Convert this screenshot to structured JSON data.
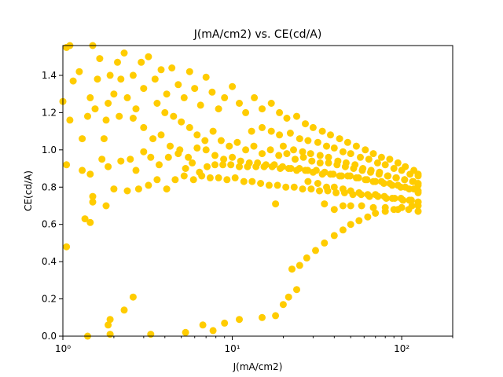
{
  "chart_data": {
    "type": "scatter",
    "title": "J(mA/cm2) vs. CE(cd/A)",
    "xlabel": "J(mA/cm2)",
    "ylabel": "CE(cd/A)",
    "xscale": "log",
    "xlim": [
      1,
      200
    ],
    "ylim": [
      0,
      1.56
    ],
    "grid": false,
    "marker_color": "#ffcc00",
    "x_ticks": [
      {
        "value": 1,
        "label": "10⁰"
      },
      {
        "value": 10,
        "label": "10¹"
      },
      {
        "value": 100,
        "label": "10²"
      }
    ],
    "y_ticks": [
      {
        "value": 0.0,
        "label": "0.0"
      },
      {
        "value": 0.2,
        "label": "0.2"
      },
      {
        "value": 0.4,
        "label": "0.4"
      },
      {
        "value": 0.6,
        "label": "0.6"
      },
      {
        "value": 0.8,
        "label": "0.8"
      },
      {
        "value": 1.0,
        "label": "1.0"
      },
      {
        "value": 1.2,
        "label": "1.2"
      },
      {
        "value": 1.4,
        "label": "1.4"
      }
    ],
    "series": [
      {
        "points": [
          [
            1.0,
            1.26
          ],
          [
            1.05,
            1.55
          ],
          [
            1.1,
            1.56
          ],
          [
            1.15,
            1.37
          ],
          [
            1.1,
            1.16
          ],
          [
            1.25,
            1.42
          ],
          [
            1.3,
            1.06
          ],
          [
            1.45,
            1.28
          ],
          [
            1.4,
            1.18
          ],
          [
            1.55,
            1.22
          ],
          [
            1.6,
            1.38
          ],
          [
            1.5,
            1.56
          ],
          [
            1.65,
            1.49
          ],
          [
            1.75,
            1.06
          ],
          [
            1.8,
            1.16
          ],
          [
            1.85,
            1.25
          ],
          [
            1.9,
            1.4
          ],
          [
            2.0,
            1.3
          ],
          [
            2.1,
            1.47
          ],
          [
            2.2,
            1.38
          ],
          [
            2.3,
            1.52
          ],
          [
            2.15,
            1.18
          ],
          [
            2.4,
            1.28
          ],
          [
            2.6,
            1.4
          ],
          [
            2.7,
            1.22
          ],
          [
            2.9,
            1.47
          ],
          [
            3.0,
            1.33
          ],
          [
            3.2,
            1.5
          ],
          [
            3.5,
            1.38
          ],
          [
            3.8,
            1.43
          ],
          [
            4.1,
            1.3
          ],
          [
            4.4,
            1.44
          ],
          [
            4.8,
            1.35
          ],
          [
            5.2,
            1.28
          ],
          [
            5.6,
            1.42
          ],
          [
            6.0,
            1.33
          ],
          [
            6.5,
            1.24
          ],
          [
            7.0,
            1.39
          ],
          [
            7.6,
            1.31
          ],
          [
            8.3,
            1.22
          ],
          [
            9.0,
            1.28
          ],
          [
            10.0,
            1.34
          ],
          [
            11.0,
            1.25
          ],
          [
            12.0,
            1.2
          ],
          [
            13.5,
            1.28
          ],
          [
            15.0,
            1.22
          ],
          [
            17.0,
            1.25
          ],
          [
            19.0,
            1.2
          ],
          [
            21.0,
            1.17
          ],
          [
            24.0,
            1.18
          ],
          [
            27.0,
            1.14
          ],
          [
            30.0,
            1.12
          ],
          [
            34.0,
            1.1
          ],
          [
            38.0,
            1.08
          ],
          [
            43.0,
            1.06
          ],
          [
            48.0,
            1.04
          ],
          [
            54.0,
            1.02
          ],
          [
            61.0,
            1.0
          ],
          [
            68.0,
            0.98
          ],
          [
            76.0,
            0.96
          ],
          [
            85.0,
            0.95
          ],
          [
            95.0,
            0.93
          ],
          [
            105.0,
            0.91
          ],
          [
            118.0,
            0.89
          ],
          [
            125.0,
            0.87
          ],
          [
            1.05,
            0.92
          ],
          [
            1.3,
            0.89
          ],
          [
            1.45,
            0.87
          ],
          [
            1.7,
            0.95
          ],
          [
            1.85,
            0.91
          ],
          [
            2.2,
            0.94
          ],
          [
            2.5,
            0.95
          ],
          [
            2.7,
            0.89
          ],
          [
            3.0,
            0.99
          ],
          [
            3.3,
            0.96
          ],
          [
            3.7,
            0.92
          ],
          [
            4.2,
            0.96
          ],
          [
            4.8,
            0.98
          ],
          [
            5.3,
            0.9
          ],
          [
            5.8,
            0.93
          ],
          [
            6.4,
            0.88
          ],
          [
            7.1,
            0.91
          ],
          [
            7.9,
            0.92
          ],
          [
            8.8,
            0.92
          ],
          [
            9.8,
            0.92
          ],
          [
            11.0,
            0.91
          ],
          [
            12.3,
            0.91
          ],
          [
            13.8,
            0.91
          ],
          [
            15.4,
            0.91
          ],
          [
            17.2,
            0.91
          ],
          [
            19.2,
            0.9
          ],
          [
            21.5,
            0.9
          ],
          [
            24.0,
            0.89
          ],
          [
            27.0,
            0.89
          ],
          [
            30.0,
            0.88
          ],
          [
            34.0,
            0.87
          ],
          [
            38.0,
            0.87
          ],
          [
            43.0,
            0.86
          ],
          [
            48.0,
            0.86
          ],
          [
            54.0,
            0.85
          ],
          [
            61.0,
            0.84
          ],
          [
            68.0,
            0.83
          ],
          [
            76.0,
            0.83
          ],
          [
            85.0,
            0.82
          ],
          [
            95.0,
            0.81
          ],
          [
            105.0,
            0.8
          ],
          [
            118.0,
            0.79
          ],
          [
            125.0,
            0.78
          ],
          [
            1.5,
            0.75
          ],
          [
            1.8,
            0.7
          ],
          [
            2.0,
            0.79
          ],
          [
            2.4,
            0.78
          ],
          [
            2.8,
            0.79
          ],
          [
            3.2,
            0.81
          ],
          [
            3.6,
            0.84
          ],
          [
            4.1,
            0.79
          ],
          [
            4.6,
            0.84
          ],
          [
            5.2,
            0.86
          ],
          [
            5.9,
            0.84
          ],
          [
            6.6,
            0.86
          ],
          [
            7.4,
            0.85
          ],
          [
            8.3,
            0.85
          ],
          [
            9.3,
            0.84
          ],
          [
            10.4,
            0.85
          ],
          [
            11.7,
            0.83
          ],
          [
            13.1,
            0.83
          ],
          [
            14.7,
            0.82
          ],
          [
            16.5,
            0.81
          ],
          [
            18.5,
            0.81
          ],
          [
            20.7,
            0.8
          ],
          [
            23.2,
            0.8
          ],
          [
            26.0,
            0.79
          ],
          [
            29.2,
            0.79
          ],
          [
            32.7,
            0.78
          ],
          [
            36.6,
            0.78
          ],
          [
            41.0,
            0.77
          ],
          [
            46.0,
            0.77
          ],
          [
            51.5,
            0.76
          ],
          [
            57.7,
            0.76
          ],
          [
            64.6,
            0.75
          ],
          [
            72.4,
            0.75
          ],
          [
            81.1,
            0.74
          ],
          [
            90.9,
            0.74
          ],
          [
            101.8,
            0.73
          ],
          [
            114.0,
            0.73
          ],
          [
            125.0,
            0.72
          ],
          [
            1.35,
            0.63
          ],
          [
            1.45,
            0.61
          ],
          [
            1.5,
            0.72
          ],
          [
            1.05,
            0.48
          ],
          [
            18.0,
            0.71
          ],
          [
            35.0,
            0.71
          ],
          [
            40.0,
            0.68
          ],
          [
            45.0,
            0.7
          ],
          [
            50.0,
            0.7
          ],
          [
            58.0,
            0.7
          ],
          [
            68.0,
            0.69
          ],
          [
            80.0,
            0.69
          ],
          [
            95.0,
            0.68
          ],
          [
            110.0,
            0.68
          ],
          [
            125.0,
            0.67
          ],
          [
            1.4,
            0.0
          ],
          [
            1.85,
            0.06
          ],
          [
            1.9,
            0.09
          ],
          [
            1.9,
            0.01
          ],
          [
            2.3,
            0.14
          ],
          [
            2.6,
            0.21
          ],
          [
            3.3,
            0.01
          ],
          [
            5.3,
            0.02
          ],
          [
            6.7,
            0.06
          ],
          [
            7.7,
            0.03
          ],
          [
            9.0,
            0.07
          ],
          [
            11.0,
            0.09
          ],
          [
            15.0,
            0.1
          ],
          [
            18.0,
            0.11
          ],
          [
            20.0,
            0.17
          ],
          [
            21.5,
            0.21
          ],
          [
            24.0,
            0.25
          ],
          [
            22.5,
            0.36
          ],
          [
            25.0,
            0.38
          ],
          [
            27.5,
            0.42
          ],
          [
            31.0,
            0.46
          ],
          [
            35.0,
            0.5
          ],
          [
            40.0,
            0.54
          ],
          [
            45.0,
            0.57
          ],
          [
            50.0,
            0.6
          ],
          [
            56.0,
            0.62
          ],
          [
            63.0,
            0.64
          ],
          [
            70.0,
            0.66
          ],
          [
            80.0,
            0.67
          ],
          [
            90.0,
            0.68
          ],
          [
            100.0,
            0.69
          ],
          [
            115.0,
            0.7
          ],
          [
            125.0,
            0.7
          ],
          [
            3.6,
            1.25
          ],
          [
            4.0,
            1.2
          ],
          [
            4.5,
            1.18
          ],
          [
            5.0,
            1.15
          ],
          [
            5.6,
            1.12
          ],
          [
            6.2,
            1.08
          ],
          [
            6.9,
            1.05
          ],
          [
            7.7,
            1.1
          ],
          [
            8.6,
            1.05
          ],
          [
            9.6,
            1.02
          ],
          [
            10.7,
            1.04
          ],
          [
            12.0,
            1.0
          ],
          [
            13.4,
            1.02
          ],
          [
            15.0,
            0.98
          ],
          [
            16.8,
            1.0
          ],
          [
            18.8,
            0.97
          ],
          [
            21.0,
            0.98
          ],
          [
            23.5,
            0.95
          ],
          [
            26.3,
            0.96
          ],
          [
            29.5,
            0.94
          ],
          [
            33.0,
            0.93
          ],
          [
            37.0,
            0.93
          ],
          [
            41.5,
            0.92
          ],
          [
            46.5,
            0.91
          ],
          [
            52.0,
            0.9
          ],
          [
            58.5,
            0.89
          ],
          [
            65.5,
            0.88
          ],
          [
            73.5,
            0.87
          ],
          [
            82.5,
            0.86
          ],
          [
            92.5,
            0.85
          ],
          [
            104.0,
            0.84
          ],
          [
            116.0,
            0.83
          ],
          [
            125.0,
            0.82
          ],
          [
            2.6,
            1.17
          ],
          [
            3.0,
            1.12
          ],
          [
            3.4,
            1.06
          ],
          [
            3.8,
            1.08
          ],
          [
            4.3,
            1.02
          ],
          [
            4.9,
            1.0
          ],
          [
            5.5,
            0.96
          ],
          [
            6.2,
            1.01
          ],
          [
            7.0,
            1.0
          ],
          [
            7.9,
            0.97
          ],
          [
            8.9,
            0.95
          ],
          [
            10.0,
            0.96
          ],
          [
            11.2,
            0.94
          ],
          [
            12.6,
            0.93
          ],
          [
            14.1,
            0.93
          ],
          [
            15.8,
            0.92
          ],
          [
            17.7,
            0.92
          ],
          [
            19.8,
            0.91
          ],
          [
            22.2,
            0.9
          ],
          [
            24.9,
            0.9
          ],
          [
            27.9,
            0.89
          ],
          [
            31.3,
            0.89
          ],
          [
            35.1,
            0.88
          ],
          [
            39.4,
            0.87
          ],
          [
            44.2,
            0.86
          ],
          [
            49.6,
            0.86
          ],
          [
            55.6,
            0.85
          ],
          [
            62.4,
            0.84
          ],
          [
            70.0,
            0.83
          ],
          [
            78.5,
            0.82
          ],
          [
            88.0,
            0.81
          ],
          [
            98.8,
            0.8
          ],
          [
            110.8,
            0.79
          ],
          [
            125.0,
            0.77
          ],
          [
            13.0,
            1.1
          ],
          [
            15.0,
            1.12
          ],
          [
            17.0,
            1.1
          ],
          [
            19.0,
            1.08
          ],
          [
            22.0,
            1.09
          ],
          [
            25.0,
            1.06
          ],
          [
            28.0,
            1.05
          ],
          [
            32.0,
            1.04
          ],
          [
            36.0,
            1.02
          ],
          [
            40.0,
            1.01
          ],
          [
            45.0,
            0.99
          ],
          [
            50.0,
            0.98
          ],
          [
            57.0,
            0.96
          ],
          [
            64.0,
            0.95
          ],
          [
            72.0,
            0.93
          ],
          [
            80.0,
            0.92
          ],
          [
            90.0,
            0.9
          ],
          [
            100.0,
            0.89
          ],
          [
            112.0,
            0.87
          ],
          [
            125.0,
            0.86
          ],
          [
            20.0,
            1.02
          ],
          [
            23.0,
            1.0
          ],
          [
            26.0,
            0.99
          ],
          [
            29.0,
            0.98
          ],
          [
            33.0,
            0.97
          ],
          [
            37.0,
            0.96
          ],
          [
            42.0,
            0.94
          ],
          [
            47.0,
            0.93
          ],
          [
            53.0,
            0.92
          ],
          [
            59.0,
            0.9
          ],
          [
            66.0,
            0.89
          ],
          [
            74.0,
            0.88
          ],
          [
            83.0,
            0.86
          ],
          [
            93.0,
            0.85
          ],
          [
            104.0,
            0.84
          ],
          [
            117.0,
            0.83
          ],
          [
            125.0,
            0.81
          ],
          [
            28.0,
            0.83
          ],
          [
            32.0,
            0.82
          ],
          [
            36.0,
            0.8
          ],
          [
            40.0,
            0.8
          ],
          [
            45.0,
            0.79
          ],
          [
            50.0,
            0.78
          ],
          [
            56.0,
            0.77
          ],
          [
            63.0,
            0.76
          ],
          [
            70.0,
            0.76
          ],
          [
            79.0,
            0.75
          ],
          [
            88.0,
            0.74
          ],
          [
            99.0,
            0.74
          ],
          [
            111.0,
            0.73
          ],
          [
            125.0,
            0.72
          ]
        ]
      }
    ]
  }
}
